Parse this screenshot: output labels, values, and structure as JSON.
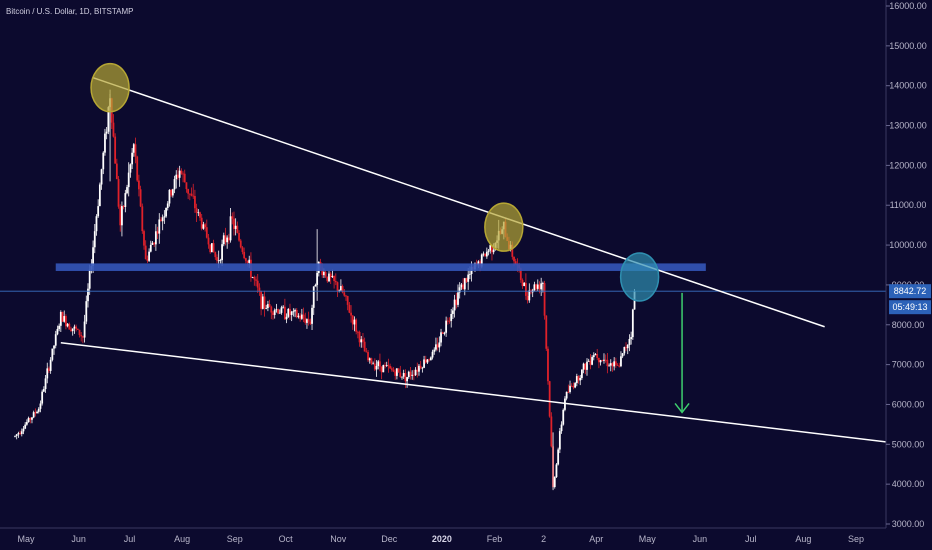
{
  "header": {
    "symbol_title": "Bitcoin / U.S. Dollar, 1D, BITSTAMP"
  },
  "colors": {
    "background": "#0c0a2e",
    "bull": "#ffffff",
    "bear": "#e0212a",
    "support_zone": "#3455b8",
    "trendline": "#ffffff",
    "price_line": "#3a72c4",
    "arrow": "#3ecf6e",
    "peak_marker": "#b6a634",
    "current_marker": "#2f8fb0"
  },
  "price_tag": {
    "price": "8842.72",
    "countdown": "05:49:13"
  },
  "chart_data": {
    "type": "candlestick",
    "x_labels": [
      "May",
      "Jun",
      "Jul",
      "Aug",
      "Sep",
      "Oct",
      "Nov",
      "Dec",
      "2020",
      "Feb",
      "2",
      "Apr",
      "May",
      "Jun",
      "Jul",
      "Aug",
      "Sep"
    ],
    "y_ticks": [
      "16000.00",
      "15000.00",
      "14000.00",
      "13000.00",
      "12000.00",
      "11000.00",
      "10000.00",
      "9000.00",
      "8000.00",
      "7000.00",
      "6000.00",
      "5000.00",
      "4000.00",
      "3000.00"
    ],
    "ylim": [
      3000,
      16000
    ],
    "last_price": 8842.72,
    "series": [
      {
        "approximate_path": [
          {
            "x": "2019-05-01",
            "y": 5200
          },
          {
            "x": "2019-05-15",
            "y": 5900
          },
          {
            "x": "2019-05-28",
            "y": 8200
          },
          {
            "x": "2019-06-10",
            "y": 7700
          },
          {
            "x": "2019-06-26",
            "y": 13800
          },
          {
            "x": "2019-07-02",
            "y": 10500
          },
          {
            "x": "2019-07-10",
            "y": 12500
          },
          {
            "x": "2019-07-17",
            "y": 9600
          },
          {
            "x": "2019-08-06",
            "y": 11900
          },
          {
            "x": "2019-08-28",
            "y": 9600
          },
          {
            "x": "2019-09-06",
            "y": 10600
          },
          {
            "x": "2019-09-24",
            "y": 8500
          },
          {
            "x": "2019-10-22",
            "y": 8100
          },
          {
            "x": "2019-10-26",
            "y": 9500
          },
          {
            "x": "2019-11-10",
            "y": 8800
          },
          {
            "x": "2019-11-25",
            "y": 7100
          },
          {
            "x": "2019-12-18",
            "y": 6700
          },
          {
            "x": "2020-01-03",
            "y": 7300
          },
          {
            "x": "2020-01-18",
            "y": 8900
          },
          {
            "x": "2020-02-13",
            "y": 10400
          },
          {
            "x": "2020-02-26",
            "y": 8800
          },
          {
            "x": "2020-03-07",
            "y": 9100
          },
          {
            "x": "2020-03-12",
            "y": 4900
          },
          {
            "x": "2020-03-13",
            "y": 3900
          },
          {
            "x": "2020-03-20",
            "y": 6200
          },
          {
            "x": "2020-04-06",
            "y": 7300
          },
          {
            "x": "2020-04-20",
            "y": 6900
          },
          {
            "x": "2020-04-28",
            "y": 7800
          },
          {
            "x": "2020-04-30",
            "y": 8842.72
          }
        ]
      }
    ],
    "annotations": {
      "upper_trendline": [
        {
          "x": "2019-06-16",
          "y": 14200
        },
        {
          "x": "2020-08-20",
          "y": 7950
        }
      ],
      "lower_trendline": [
        {
          "x": "2019-05-28",
          "y": 7550
        },
        {
          "x": "2020-11-15",
          "y": 4800
        }
      ],
      "support_zone": {
        "x_start": "2019-05-25",
        "x_end": "2020-06-11",
        "y_low": 9350,
        "y_high": 9540
      },
      "ellipse_markers": [
        {
          "x": "2019-06-26",
          "y": 13950,
          "kind": "peak"
        },
        {
          "x": "2020-02-13",
          "y": 10450,
          "kind": "peak"
        },
        {
          "x": "2020-05-03",
          "y": 9200,
          "kind": "current"
        }
      ],
      "down_arrow": {
        "x": "2020-05-28",
        "y_from": 8800,
        "y_to": 5800
      }
    }
  }
}
